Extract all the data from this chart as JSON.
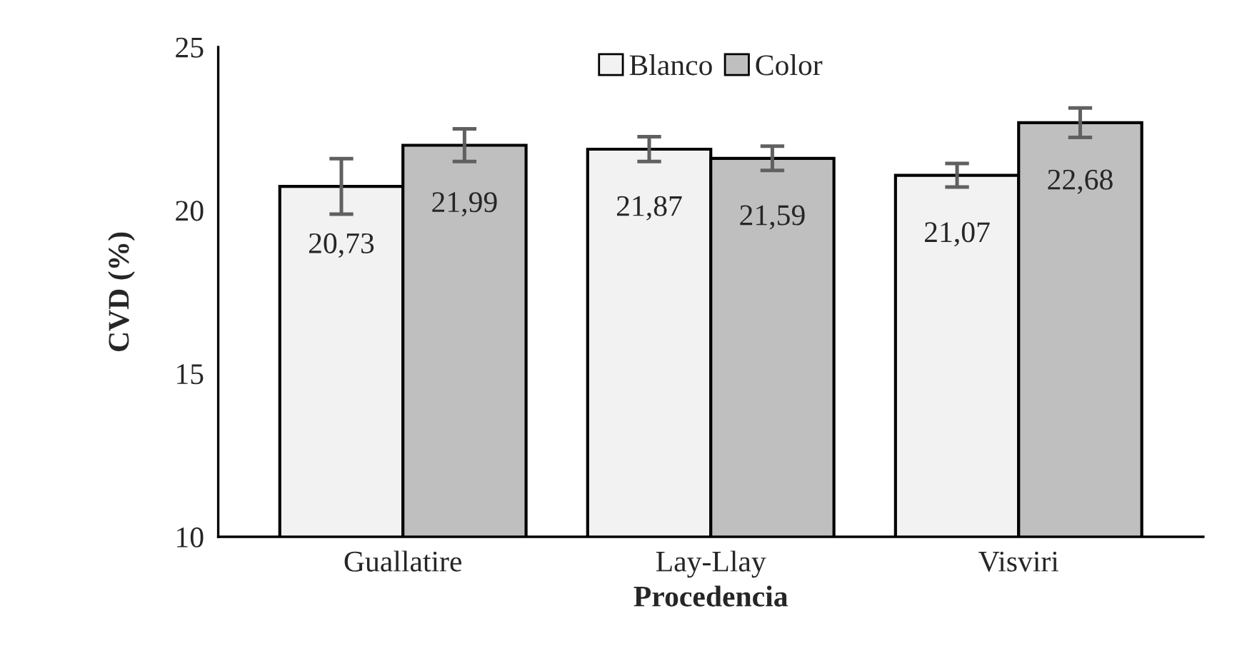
{
  "chart_data": {
    "type": "bar",
    "xlabel": "Procedencia",
    "ylabel": "CVD (%)",
    "categories": [
      "Guallatire",
      "Lay-Llay",
      "Visviri"
    ],
    "series": [
      {
        "name": "Blanco",
        "color": "#f2f2f2",
        "values": [
          20.73,
          21.87,
          21.07
        ],
        "errors": [
          0.85,
          0.38,
          0.36
        ],
        "value_labels": [
          "20,73",
          "21,87",
          "21,07"
        ]
      },
      {
        "name": "Color",
        "color": "#bfbfbf",
        "values": [
          21.99,
          21.59,
          22.68
        ],
        "errors": [
          0.5,
          0.37,
          0.45
        ],
        "value_labels": [
          "21,99",
          "21,59",
          "22,68"
        ]
      }
    ],
    "ylim": [
      10,
      25
    ],
    "yticks": [
      10,
      15,
      20,
      25
    ],
    "legend": "top",
    "grid": false
  }
}
